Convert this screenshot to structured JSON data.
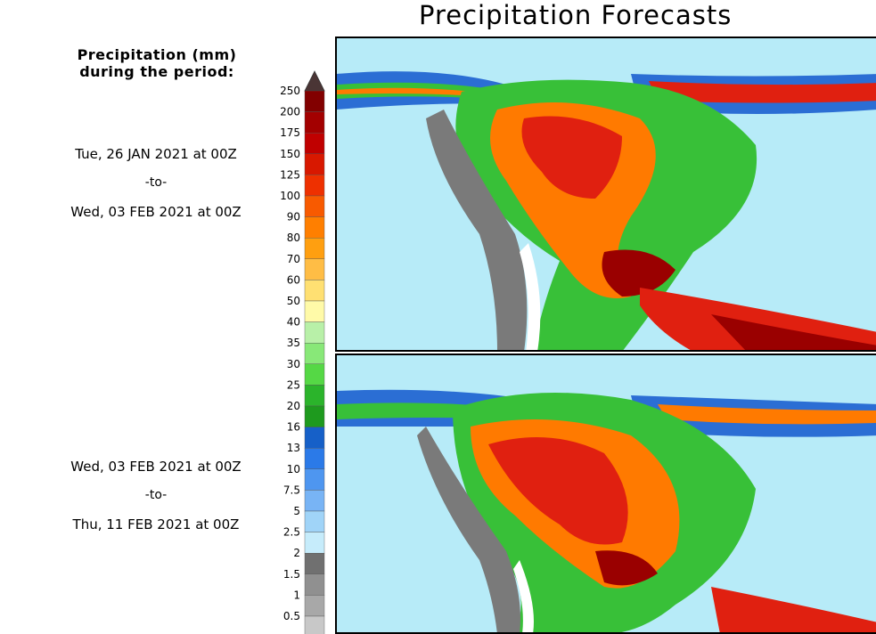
{
  "title": "Precipitation Forecasts",
  "legend": {
    "heading_line1": "Precipitation (mm)",
    "heading_line2": "during the period:"
  },
  "periods": [
    {
      "start": "Tue, 26 JAN 2021 at 00Z",
      "to": "-to-",
      "end": "Wed, 03 FEB 2021 at 00Z"
    },
    {
      "start": "Wed, 03 FEB 2021 at 00Z",
      "to": "-to-",
      "end": "Thu, 11 FEB 2021 at 00Z"
    }
  ],
  "colorbar": {
    "unit": "mm",
    "levels": [
      "250",
      "200",
      "175",
      "150",
      "125",
      "100",
      "90",
      "80",
      "70",
      "60",
      "50",
      "40",
      "35",
      "30",
      "25",
      "20",
      "16",
      "13",
      "10",
      "7.5",
      "5",
      "2.5",
      "2",
      "1.5",
      "1",
      "0.5"
    ],
    "colors": [
      "#820000",
      "#a30000",
      "#c00000",
      "#d81800",
      "#ee3000",
      "#f85a00",
      "#ff7f00",
      "#ff9f10",
      "#ffbd45",
      "#ffe072",
      "#fffaa8",
      "#b8f0a8",
      "#88e878",
      "#55d845",
      "#2bb42b",
      "#1e9a1e",
      "#1660c8",
      "#2b7ae8",
      "#4e96f0",
      "#78b4f5",
      "#a0d4f8",
      "#c6ecfb",
      "#707070",
      "#909090",
      "#a8a8a8",
      "#c8c8c8"
    ],
    "overflow_color": "#4a3535"
  },
  "colors": {
    "ocean": "#b7ebf8",
    "light_blue": "#6fa9ee",
    "blue": "#2b6ed4",
    "green": "#38c038",
    "yellow": "#fff07a",
    "orange": "#ff7a00",
    "red": "#e02010",
    "dark_red": "#9a0000",
    "gray": "#7a7a7a",
    "land_white": "#ffffff"
  }
}
